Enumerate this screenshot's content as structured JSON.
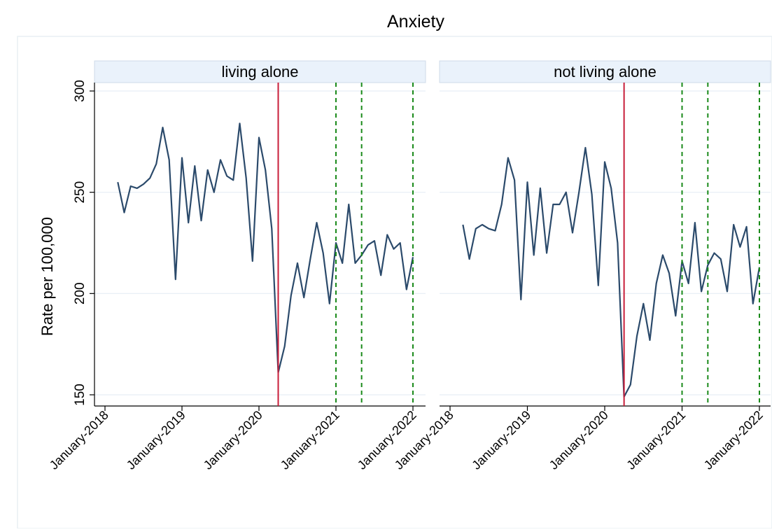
{
  "chart_data": {
    "type": "line",
    "title": "Anxiety",
    "ylabel": "Rate per 100,000",
    "ylim": [
      150,
      300
    ],
    "yticks": [
      150,
      200,
      250,
      300
    ],
    "xticks": [
      "January-2018",
      "January-2019",
      "January-2020",
      "January-2021",
      "January-2022"
    ],
    "xlim_months": [
      0,
      48
    ],
    "start_month": "2018-03",
    "colors": {
      "line": "#2b4a6b",
      "vline_red": "#c81e3a",
      "vline_green": "#1a8a1a",
      "strip_fill": "#eaf2fb",
      "grid": "#e6eef5"
    },
    "markers": {
      "red": [
        "2020-04"
      ],
      "green": [
        "2021-01",
        "2021-05",
        "2022-01"
      ]
    },
    "panels": [
      {
        "label": "living alone",
        "series": [
          {
            "values": [
              255,
              240,
              253,
              252,
              254,
              257,
              264,
              282,
              266,
              207,
              267,
              235,
              263,
              236,
              261,
              250,
              266,
              258,
              256,
              284,
              257,
              216,
              277,
              261,
              232,
              161,
              174,
              199,
              215,
              198,
              217,
              235,
              220,
              195,
              225,
              215,
              244,
              215,
              219,
              224,
              226,
              209,
              229,
              222,
              225,
              202,
              218
            ]
          }
        ]
      },
      {
        "label": "not living alone",
        "series": [
          {
            "values": [
              234,
              217,
              232,
              234,
              232,
              231,
              244,
              267,
              256,
              197,
              255,
              219,
              252,
              220,
              244,
              244,
              250,
              230,
              250,
              272,
              249,
              204,
              265,
              252,
              225,
              149,
              155,
              179,
              195,
              177,
              205,
              219,
              210,
              189,
              216,
              205,
              235,
              201,
              214,
              220,
              217,
              201,
              234,
              223,
              233,
              195,
              213
            ]
          }
        ]
      }
    ]
  }
}
